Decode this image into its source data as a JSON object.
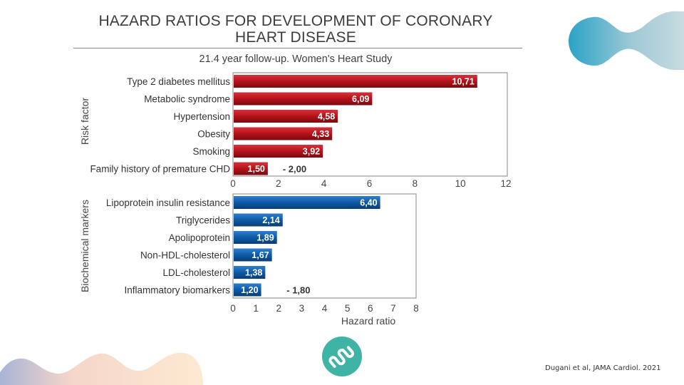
{
  "slide": {
    "title_line1": "HAZARD RATIOS FOR DEVELOPMENT OF CORONARY",
    "title_line2": "HEART DISEASE",
    "subtitle": "21.4 year follow-up. Women's Heart Study",
    "citation": "Dugani et al, JAMA Cardiol. 2021",
    "logo_icon": "wave-logo-icon",
    "colors": {
      "risk_bar": "#b5121b",
      "marker_bar": "#0e5aa7",
      "logo": "#3fb3a6",
      "accent_blob": "#2aa3c6"
    }
  },
  "chart_data": [
    {
      "type": "bar",
      "orientation": "horizontal",
      "title": "21.4 year follow-up. Women's Heart Study",
      "ylabel": "Risk factor",
      "xlabel": "",
      "categories": [
        "Type 2 diabetes mellitus",
        "Metabolic syndrome",
        "Hypertension",
        "Obesity",
        "Smoking",
        "Family history of premature CHD"
      ],
      "values": [
        10.71,
        6.09,
        4.58,
        4.33,
        3.92,
        1.5
      ],
      "value_labels": [
        "10,71",
        "6,09",
        "4,58",
        "4,33",
        "3,92",
        "1,50"
      ],
      "range_end_labels": [
        null,
        null,
        null,
        null,
        null,
        "- 2,00"
      ],
      "xlim": [
        0,
        12
      ],
      "xticks": [
        0,
        2,
        4,
        6,
        8,
        10,
        12
      ],
      "xtick_labels": [
        "0",
        "2",
        "4",
        "6",
        "8",
        "10",
        "12"
      ],
      "color": "#b5121b",
      "grid": false
    },
    {
      "type": "bar",
      "orientation": "horizontal",
      "ylabel": "Biochemical markers",
      "xlabel": "Hazard ratio",
      "categories": [
        "Lipoprotein insulin resistance",
        "Triglycerides",
        "Apolipoprotein",
        "Non-HDL-cholesterol",
        "LDL-cholesterol",
        "Inflammatory biomarkers"
      ],
      "values": [
        6.4,
        2.14,
        1.89,
        1.67,
        1.38,
        1.2
      ],
      "value_labels": [
        "6,40",
        "2,14",
        "1,89",
        "1,67",
        "1,38",
        "1,20"
      ],
      "range_end_labels": [
        null,
        null,
        null,
        null,
        null,
        "- 1,80"
      ],
      "xlim": [
        0,
        8
      ],
      "xticks": [
        0,
        1,
        2,
        3,
        4,
        5,
        6,
        7,
        8
      ],
      "xtick_labels": [
        "0",
        "1",
        "2",
        "3",
        "4",
        "5",
        "6",
        "7",
        "8"
      ],
      "color": "#0e5aa7",
      "grid": false
    }
  ]
}
